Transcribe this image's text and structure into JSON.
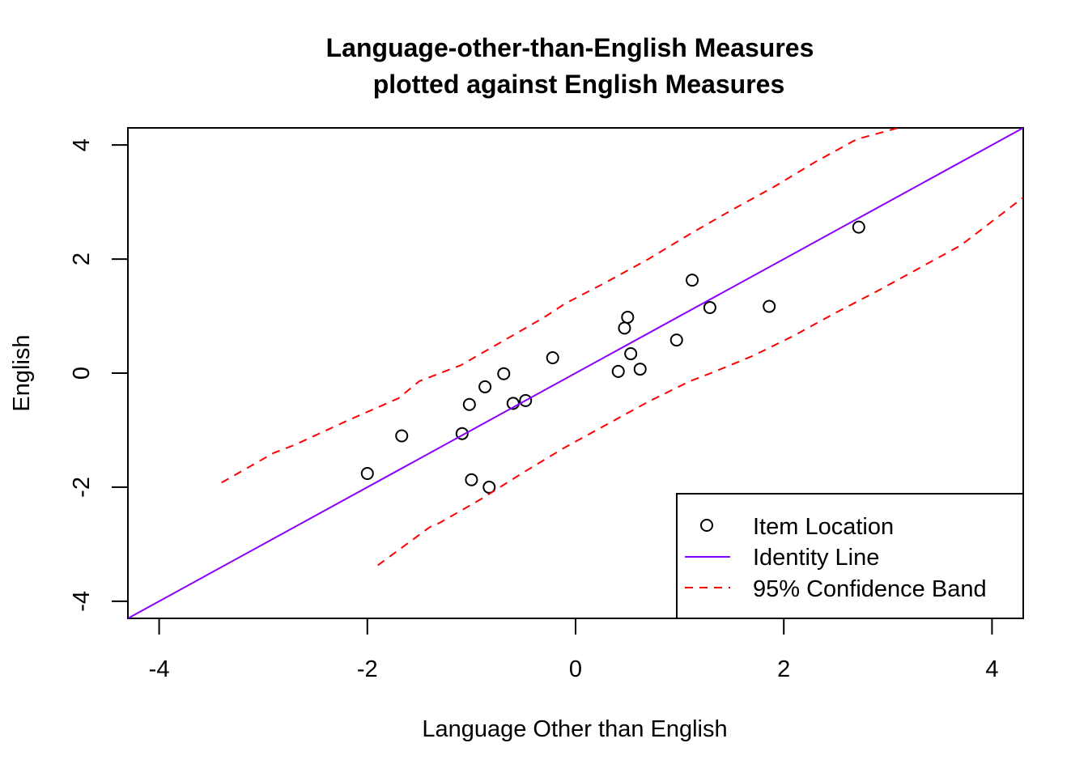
{
  "chart_data": {
    "type": "scatter",
    "title": [
      "Language-other-than-English Measures",
      "plotted against English Measures"
    ],
    "xlabel": "Language Other than English",
    "ylabel": "English",
    "xlim": [
      -4.3,
      4.3
    ],
    "ylim": [
      -4.3,
      4.3
    ],
    "x_ticks": [
      -4,
      -2,
      0,
      2,
      4
    ],
    "y_ticks": [
      -4,
      -2,
      0,
      2,
      4
    ],
    "x_tick_labels": [
      "-4",
      "-2",
      "0",
      "2",
      "4"
    ],
    "y_tick_labels": [
      "-4",
      "-2",
      "0",
      "2",
      "4"
    ],
    "grid": false,
    "legend_position": "bottom-right",
    "colors": {
      "points": "#000000",
      "identity": "#8B00FF",
      "band": "#FF0000"
    },
    "series": [
      {
        "name": "Item Location",
        "type": "scatter",
        "x": [
          2.72,
          1.12,
          1.29,
          1.86,
          0.5,
          0.47,
          0.97,
          0.53,
          0.41,
          0.62,
          -0.22,
          -0.69,
          -0.87,
          -1.02,
          -0.6,
          -0.48,
          -1.09,
          -1.67,
          -2.0,
          -1.0,
          -0.83
        ],
        "y": [
          2.56,
          1.63,
          1.15,
          1.17,
          0.98,
          0.79,
          0.58,
          0.34,
          0.03,
          0.07,
          0.27,
          -0.01,
          -0.24,
          -0.55,
          -0.53,
          -0.48,
          -1.06,
          -1.1,
          -1.76,
          -1.87,
          -2.0
        ]
      },
      {
        "name": "Identity Line",
        "type": "line",
        "x": [
          -4.3,
          4.3
        ],
        "y": [
          -4.3,
          4.3
        ]
      },
      {
        "name": "95% Confidence Band",
        "type": "line-dashed",
        "x": [
          -3.4,
          -2.9,
          -2.7,
          -2.2,
          -1.7,
          -1.5,
          -1.1,
          -0.7,
          -0.3,
          -0.1,
          0.3,
          0.7,
          1.1,
          1.5,
          1.9,
          2.3,
          2.7,
          3.1
        ],
        "y": [
          -1.92,
          -1.4,
          -1.26,
          -0.84,
          -0.44,
          -0.14,
          0.14,
          0.56,
          0.98,
          1.22,
          1.6,
          2.0,
          2.44,
          2.86,
          3.26,
          3.7,
          4.1,
          4.3
        ]
      },
      {
        "name": "95% Confidence Band",
        "type": "line-dashed",
        "x": [
          -1.9,
          -1.4,
          -1.3,
          -0.9,
          -0.5,
          -0.1,
          0.3,
          0.7,
          1.1,
          1.3,
          1.7,
          2.1,
          2.5,
          2.9,
          3.3,
          3.7,
          4.3
        ],
        "y": [
          -3.37,
          -2.7,
          -2.62,
          -2.2,
          -1.74,
          -1.3,
          -0.9,
          -0.5,
          -0.14,
          0.0,
          0.3,
          0.66,
          1.06,
          1.44,
          1.84,
          2.24,
          3.08
        ]
      }
    ],
    "legend": [
      {
        "label": "Item Location",
        "symbol": "circle"
      },
      {
        "label": "Identity Line",
        "symbol": "line"
      },
      {
        "label": "95% Confidence Band",
        "symbol": "dashed"
      }
    ]
  }
}
